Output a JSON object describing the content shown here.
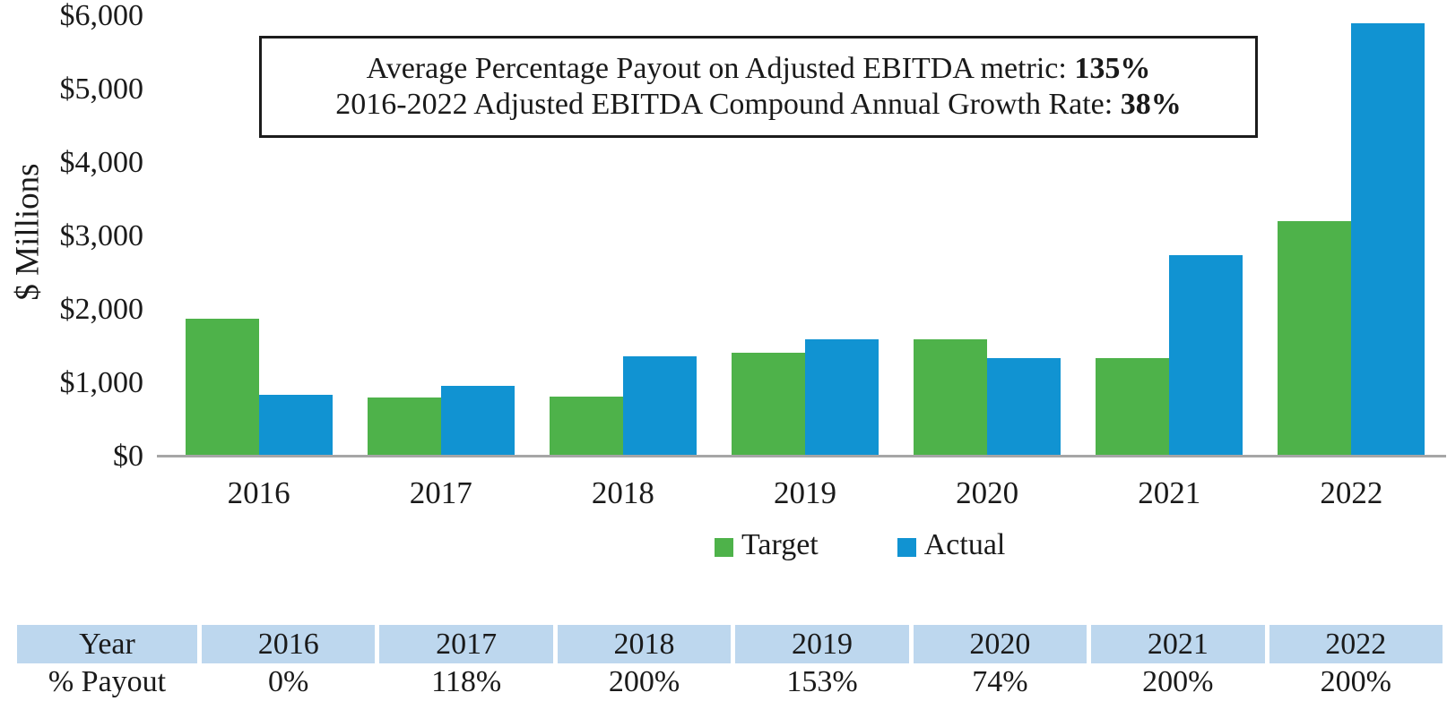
{
  "annotation_box": {
    "lines": [
      {
        "text": "Average Percentage Payout on Adjusted EBITDA metric: ",
        "bold_value": "135%"
      },
      {
        "text": "2016-2022 Adjusted EBITDA Compound Annual Growth Rate: ",
        "bold_value": "38%"
      }
    ]
  },
  "chart_data": [
    {
      "type": "bar",
      "title": "",
      "categories": [
        "2016",
        "2017",
        "2018",
        "2019",
        "2020",
        "2021",
        "2022"
      ],
      "series": [
        {
          "name": "Target",
          "color": "#4EB24A",
          "values": [
            1895,
            810,
            820,
            1430,
            1605,
            1350,
            3235
          ]
        },
        {
          "name": "Actual",
          "color": "#1193D2",
          "values": [
            850,
            975,
            1380,
            1615,
            1350,
            2765,
            5950
          ]
        }
      ],
      "xlabel": "",
      "ylabel": "$ Millions",
      "ylim": [
        0,
        6000
      ],
      "y_tick_interval": 1000,
      "y_tick_labels": [
        "$6,000",
        "$5,000",
        "$4,000",
        "$3,000",
        "$2,000",
        "$1,000",
        "$0"
      ],
      "grid": false,
      "legend_position": "bottom-center",
      "axis_line_color": "#A6A6A6"
    },
    {
      "type": "table",
      "header_row": [
        "Year",
        "2016",
        "2017",
        "2018",
        "2019",
        "2020",
        "2021",
        "2022"
      ],
      "rows": [
        [
          "% Payout",
          "0%",
          "118%",
          "200%",
          "153%",
          "74%",
          "200%",
          "200%"
        ]
      ],
      "header_bg": "#BDD7EE"
    }
  ]
}
